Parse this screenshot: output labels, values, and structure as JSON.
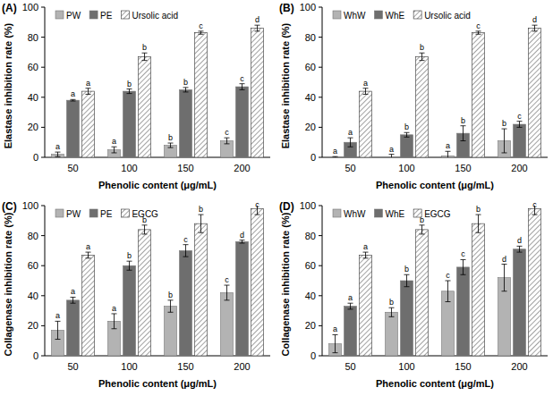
{
  "chart_data": [
    {
      "type": "bar",
      "title": "(A)",
      "x_label": "Phenolic content (μg/mL)",
      "y_label": "Elastase inhibition rate (%)",
      "categories": [
        "50",
        "100",
        "150",
        "200"
      ],
      "ylim": [
        0,
        100
      ],
      "yticks": [
        0,
        20,
        40,
        60,
        80,
        100
      ],
      "legend": "top-left",
      "series": [
        {
          "name": "PW",
          "color": "#b3b3b3",
          "values": [
            2,
            5,
            8,
            11
          ],
          "errors": [
            1.5,
            2,
            1.5,
            2
          ],
          "letters": [
            "a",
            "a",
            "b",
            "c"
          ]
        },
        {
          "name": "PE",
          "color": "#6e6e6e",
          "values": [
            38,
            44,
            45,
            47
          ],
          "errors": [
            0.5,
            1.5,
            1.5,
            2
          ],
          "letters": [
            "a",
            "b",
            "b",
            "c"
          ]
        },
        {
          "name": "Ursolic acid",
          "color": "#ffffff",
          "values": [
            44,
            67,
            83,
            86
          ],
          "errors": [
            2,
            2.5,
            1,
            2
          ],
          "letters": [
            "a",
            "b",
            "c",
            "d"
          ]
        }
      ]
    },
    {
      "type": "bar",
      "title": "(B)",
      "x_label": "Phenolic content (μg/mL)",
      "y_label": "Elastase inhibition rate (%)",
      "categories": [
        "50",
        "100",
        "150",
        "200"
      ],
      "ylim": [
        0,
        100
      ],
      "yticks": [
        0,
        20,
        40,
        60,
        80,
        100
      ],
      "legend": "top-left",
      "series": [
        {
          "name": "WhW",
          "color": "#b3b3b3",
          "values": [
            0,
            0,
            1,
            11
          ],
          "errors": [
            0.5,
            2,
            3,
            8
          ],
          "letters": [
            "a",
            "a",
            "a",
            "b"
          ]
        },
        {
          "name": "WhE",
          "color": "#6e6e6e",
          "values": [
            10,
            15,
            16,
            22
          ],
          "errors": [
            3,
            1.5,
            5,
            2
          ],
          "letters": [
            "a",
            "b",
            "b",
            "c"
          ]
        },
        {
          "name": "Ursolic acid",
          "color": "#ffffff",
          "values": [
            44,
            67,
            83,
            86
          ],
          "errors": [
            2,
            2.5,
            1,
            2
          ],
          "letters": [
            "a",
            "b",
            "c",
            "d"
          ]
        }
      ]
    },
    {
      "type": "bar",
      "title": "(C)",
      "x_label": "Phenolic content (μg/mL)",
      "y_label": "Collagenase inhibition rate (%)",
      "categories": [
        "50",
        "100",
        "150",
        "200"
      ],
      "ylim": [
        0,
        100
      ],
      "yticks": [
        0,
        20,
        40,
        60,
        80,
        100
      ],
      "legend": "top-left",
      "series": [
        {
          "name": "PW",
          "color": "#b3b3b3",
          "values": [
            17,
            23,
            33,
            42
          ],
          "errors": [
            6,
            5,
            4,
            5
          ],
          "letters": [
            "a",
            "a",
            "b",
            "c"
          ]
        },
        {
          "name": "PE",
          "color": "#6e6e6e",
          "values": [
            37,
            60,
            70,
            76
          ],
          "errors": [
            2,
            3,
            4,
            1
          ],
          "letters": [
            "a",
            "b",
            "c",
            "d"
          ]
        },
        {
          "name": "EGCG",
          "color": "#ffffff",
          "values": [
            67,
            84,
            88,
            98
          ],
          "errors": [
            2,
            3,
            6,
            4
          ],
          "letters": [
            "a",
            "b",
            "b",
            "c"
          ]
        }
      ]
    },
    {
      "type": "bar",
      "title": "(D)",
      "x_label": "Phenolic content (μg/mL)",
      "y_label": "Collagenase inhibition rate (%)",
      "categories": [
        "50",
        "100",
        "150",
        "200"
      ],
      "ylim": [
        0,
        100
      ],
      "yticks": [
        0,
        20,
        40,
        60,
        80,
        100
      ],
      "legend": "top-left",
      "series": [
        {
          "name": "WhW",
          "color": "#b3b3b3",
          "values": [
            8,
            29,
            43,
            52
          ],
          "errors": [
            6,
            3,
            7,
            9
          ],
          "letters": [
            "a",
            "b",
            "c",
            "d"
          ]
        },
        {
          "name": "WhE",
          "color": "#6e6e6e",
          "values": [
            33,
            50,
            59,
            71
          ],
          "errors": [
            2,
            4,
            5,
            2
          ],
          "letters": [
            "a",
            "b",
            "c",
            "d"
          ]
        },
        {
          "name": "EGCG",
          "color": "#ffffff",
          "values": [
            67,
            84,
            88,
            98
          ],
          "errors": [
            2,
            3,
            6,
            4
          ],
          "letters": [
            "a",
            "b",
            "b",
            "c"
          ]
        }
      ]
    }
  ]
}
